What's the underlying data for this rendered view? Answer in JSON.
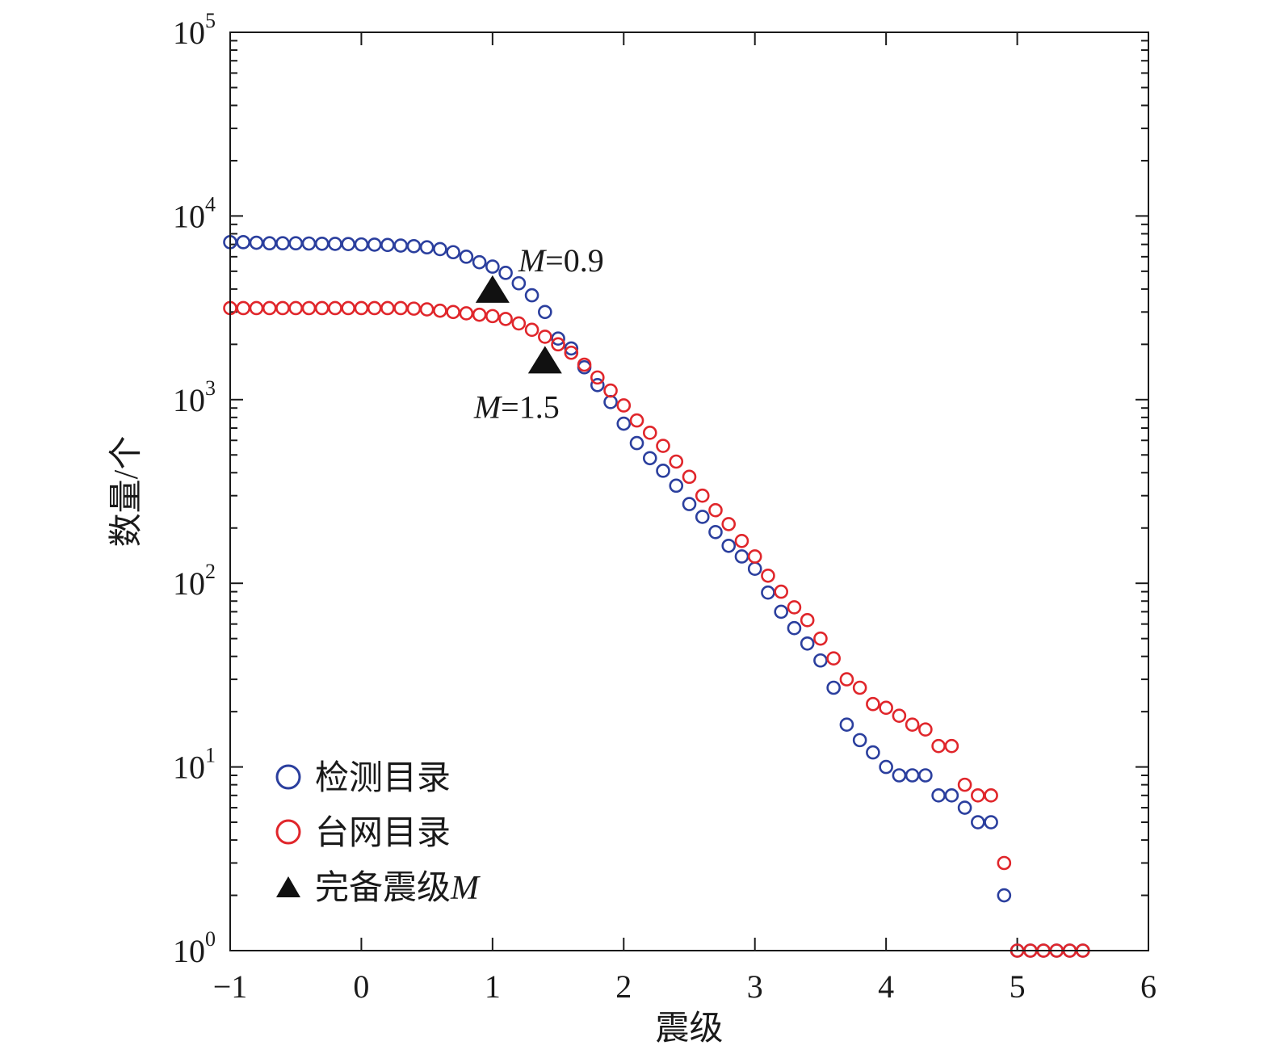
{
  "chart_data": {
    "type": "scatter",
    "xlabel": "震级",
    "ylabel": "数量/个",
    "xlim": [
      -1,
      6
    ],
    "ylim": [
      1,
      100000
    ],
    "y_scale": "log",
    "x_ticks": [
      "−1",
      "0",
      "1",
      "2",
      "3",
      "4",
      "5",
      "6"
    ],
    "y_ticks": [
      {
        "base": "10",
        "exp": "0"
      },
      {
        "base": "10",
        "exp": "1"
      },
      {
        "base": "10",
        "exp": "2"
      },
      {
        "base": "10",
        "exp": "3"
      },
      {
        "base": "10",
        "exp": "4"
      },
      {
        "base": "10",
        "exp": "5"
      }
    ],
    "grid": false,
    "legend_position": "bottom-left",
    "legend": [
      {
        "label": "检测目录",
        "marker": "circle-open",
        "color": "#2b3f9e"
      },
      {
        "label": "台网目录",
        "marker": "circle-open",
        "color": "#e0262b"
      },
      {
        "label": "完备震级",
        "label_italic": "M",
        "marker": "triangle-filled",
        "color": "#111111"
      }
    ],
    "series": [
      {
        "name": "检测目录",
        "color": "#2b3f9e",
        "x": [
          -1.0,
          -0.9,
          -0.8,
          -0.7,
          -0.6,
          -0.5,
          -0.4,
          -0.3,
          -0.2,
          -0.1,
          0.0,
          0.1,
          0.2,
          0.3,
          0.4,
          0.5,
          0.6,
          0.7,
          0.8,
          0.9,
          1.0,
          1.1,
          1.2,
          1.3,
          1.4,
          1.5,
          1.6,
          1.7,
          1.8,
          1.9,
          2.0,
          2.1,
          2.2,
          2.3,
          2.4,
          2.5,
          2.6,
          2.7,
          2.8,
          2.9,
          3.0,
          3.1,
          3.2,
          3.3,
          3.4,
          3.5,
          3.6,
          3.7,
          3.8,
          3.9,
          4.0,
          4.1,
          4.2,
          4.3,
          4.4,
          4.5,
          4.6,
          4.7,
          4.8,
          4.9,
          5.0,
          5.1,
          5.2,
          5.3,
          5.4,
          5.5
        ],
        "y": [
          7200,
          7200,
          7150,
          7100,
          7100,
          7100,
          7080,
          7060,
          7050,
          7030,
          7000,
          6980,
          6950,
          6900,
          6850,
          6750,
          6600,
          6350,
          6000,
          5600,
          5300,
          4900,
          4300,
          3700,
          3000,
          2150,
          1900,
          1500,
          1200,
          970,
          740,
          580,
          480,
          410,
          340,
          270,
          230,
          190,
          160,
          140,
          120,
          89,
          70,
          57,
          47,
          38,
          27,
          17,
          14,
          12,
          10,
          9,
          9,
          9,
          7,
          7,
          6,
          5,
          5,
          2,
          1,
          1,
          1,
          1,
          1,
          1
        ]
      },
      {
        "name": "台网目录",
        "color": "#e0262b",
        "x": [
          -1.0,
          -0.9,
          -0.8,
          -0.7,
          -0.6,
          -0.5,
          -0.4,
          -0.3,
          -0.2,
          -0.1,
          0.0,
          0.1,
          0.2,
          0.3,
          0.4,
          0.5,
          0.6,
          0.7,
          0.8,
          0.9,
          1.0,
          1.1,
          1.2,
          1.3,
          1.4,
          1.5,
          1.6,
          1.7,
          1.8,
          1.9,
          2.0,
          2.1,
          2.2,
          2.3,
          2.4,
          2.5,
          2.6,
          2.7,
          2.8,
          2.9,
          3.0,
          3.1,
          3.2,
          3.3,
          3.4,
          3.5,
          3.6,
          3.7,
          3.8,
          3.9,
          4.0,
          4.1,
          4.2,
          4.3,
          4.4,
          4.5,
          4.6,
          4.7,
          4.8,
          4.9,
          5.0,
          5.1,
          5.2,
          5.3,
          5.4,
          5.5
        ],
        "y": [
          3150,
          3150,
          3150,
          3150,
          3150,
          3150,
          3150,
          3150,
          3150,
          3150,
          3150,
          3150,
          3150,
          3150,
          3130,
          3100,
          3050,
          3000,
          2950,
          2900,
          2850,
          2750,
          2600,
          2400,
          2200,
          2000,
          1800,
          1550,
          1320,
          1120,
          930,
          770,
          660,
          560,
          460,
          380,
          300,
          250,
          210,
          170,
          140,
          110,
          90,
          74,
          63,
          50,
          39,
          30,
          27,
          22,
          21,
          19,
          17,
          16,
          13,
          13,
          8,
          7,
          7,
          3,
          1,
          1,
          1,
          1,
          1,
          1
        ]
      }
    ],
    "annotations": [
      {
        "x": 1.0,
        "y": 4000,
        "marker": "triangle-filled",
        "label_italic": "M",
        "label_rest": "=0.9",
        "placement": "upper-right"
      },
      {
        "x": 1.4,
        "y": 1650,
        "marker": "triangle-filled",
        "label_italic": "M",
        "label_rest": "=1.5",
        "placement": "below"
      }
    ]
  }
}
